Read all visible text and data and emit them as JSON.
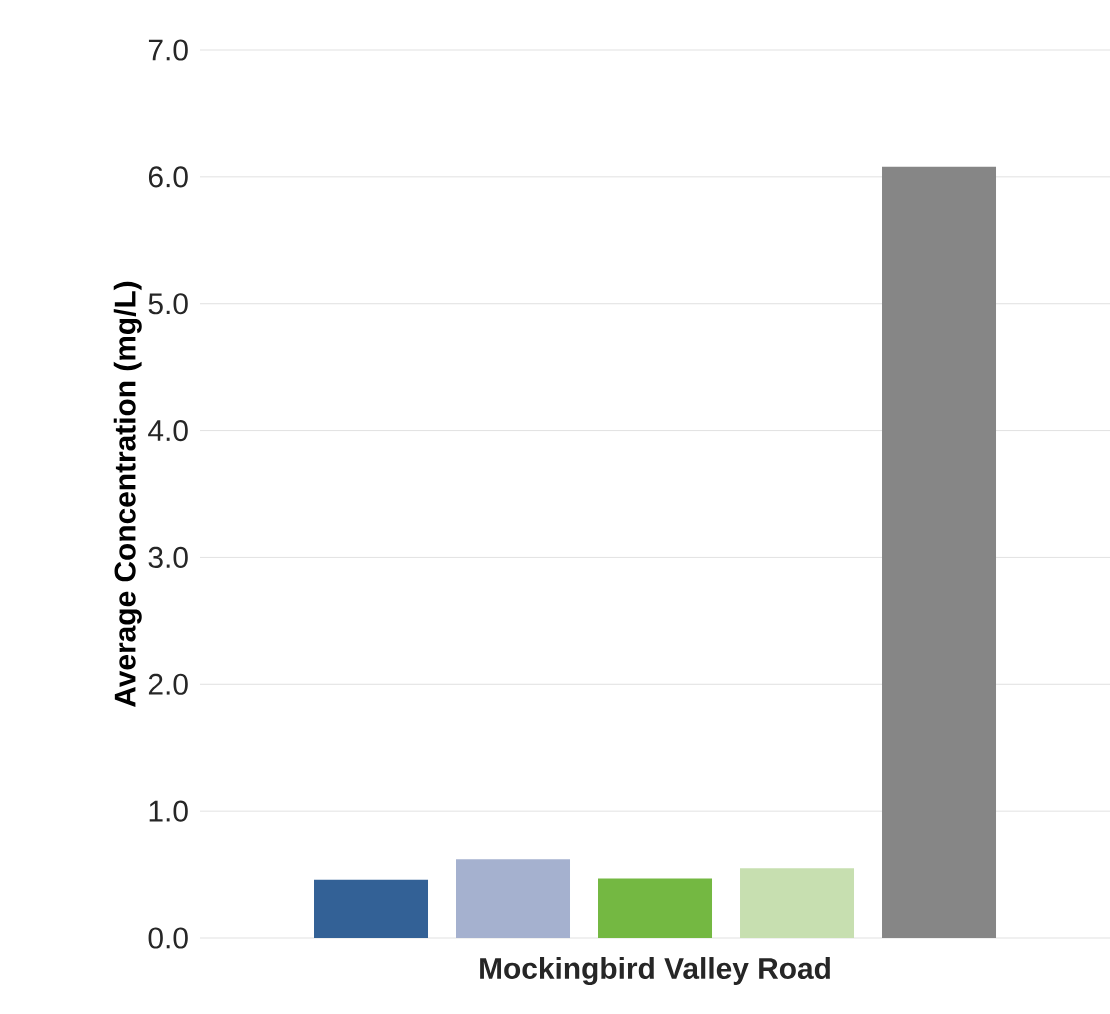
{
  "chart_data": {
    "type": "bar",
    "ylabel": "Average Concentration (mg/L)",
    "categories": [
      "Mockingbird Valley Road"
    ],
    "series": [
      {
        "color": "#336196",
        "values": [
          0.46
        ]
      },
      {
        "color": "#a5b1cf",
        "values": [
          0.62
        ]
      },
      {
        "color": "#74b842",
        "values": [
          0.47
        ]
      },
      {
        "color": "#c7dfb0",
        "values": [
          0.55
        ]
      },
      {
        "color": "#868686",
        "values": [
          6.08
        ]
      }
    ],
    "ylim": [
      0,
      7
    ],
    "yticks": [
      {
        "value": 0,
        "label": "0.0"
      },
      {
        "value": 1,
        "label": "1.0"
      },
      {
        "value": 2,
        "label": "2.0"
      },
      {
        "value": 3,
        "label": "3.0"
      },
      {
        "value": 4,
        "label": "4.0"
      },
      {
        "value": 5,
        "label": "5.0"
      },
      {
        "value": 6,
        "label": "6.0"
      },
      {
        "value": 7,
        "label": "7.0"
      }
    ],
    "grid": "y"
  }
}
